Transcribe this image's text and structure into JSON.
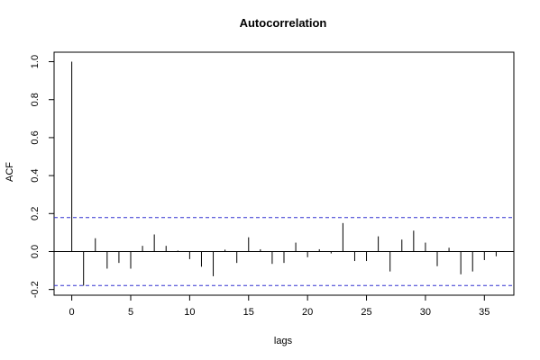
{
  "chart_data": {
    "type": "bar",
    "title": "Autocorrelation",
    "xlabel": "lags",
    "ylabel": "ACF",
    "xlim": [
      -1.5,
      37.5
    ],
    "ylim": [
      -0.23,
      1.05
    ],
    "x_ticks": [
      0,
      5,
      10,
      15,
      20,
      25,
      30,
      35
    ],
    "x_tick_labels": [
      "0",
      "5",
      "10",
      "15",
      "20",
      "25",
      "30",
      "35"
    ],
    "y_ticks": [
      -0.2,
      0.0,
      0.2,
      0.4,
      0.6,
      0.8,
      1.0
    ],
    "y_tick_labels": [
      "-0.2",
      "0.0",
      "0.2",
      "0.4",
      "0.6",
      "0.8",
      "1.0"
    ],
    "lags": [
      0,
      1,
      2,
      3,
      4,
      5,
      6,
      7,
      8,
      9,
      10,
      11,
      12,
      13,
      14,
      15,
      16,
      17,
      18,
      19,
      20,
      21,
      22,
      23,
      24,
      25,
      26,
      27,
      28,
      29,
      30,
      31,
      32,
      33,
      34,
      35,
      36
    ],
    "values": [
      1.0,
      -0.18,
      0.07,
      -0.09,
      -0.06,
      -0.09,
      0.03,
      0.09,
      0.03,
      0.005,
      -0.04,
      -0.08,
      -0.13,
      0.01,
      -0.06,
      0.075,
      0.012,
      -0.065,
      -0.06,
      0.047,
      -0.03,
      0.012,
      -0.01,
      0.15,
      -0.05,
      -0.05,
      0.08,
      -0.105,
      0.063,
      0.11,
      0.047,
      -0.077,
      0.02,
      -0.12,
      -0.105,
      -0.045,
      -0.025
    ],
    "confidence_bound": 0.179,
    "ci_color": "#3030d0",
    "grid": false,
    "zero_line": true
  }
}
